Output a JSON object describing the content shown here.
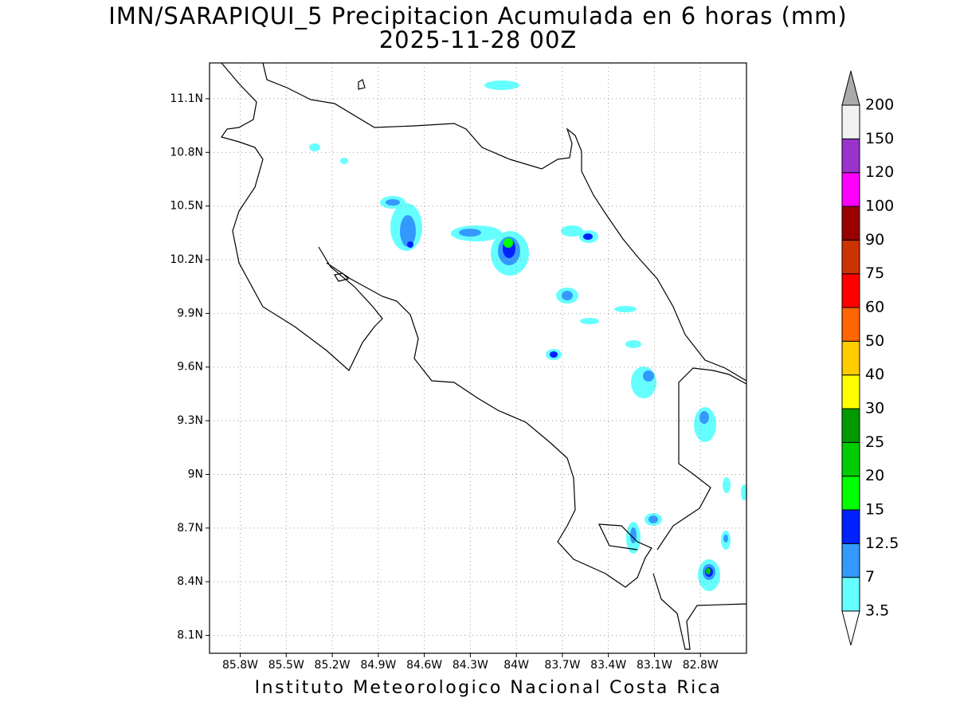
{
  "title": "IMN/SARAPIQUI_5 Precipitacion Acumulada en 6 horas (mm)",
  "subtitle": "2025-11-28 00Z",
  "footer": "Instituto Meteorologico Nacional Costa Rica",
  "map": {
    "xlim": [
      -86,
      -82.5
    ],
    "ylim": [
      8,
      11.3
    ],
    "xticks": [
      {
        "value": -85.8,
        "label": "85.8W"
      },
      {
        "value": -85.5,
        "label": "85.5W"
      },
      {
        "value": -85.2,
        "label": "85.2W"
      },
      {
        "value": -84.9,
        "label": "84.9W"
      },
      {
        "value": -84.6,
        "label": "84.6W"
      },
      {
        "value": -84.3,
        "label": "84.3W"
      },
      {
        "value": -84,
        "label": "84W"
      },
      {
        "value": -83.7,
        "label": "83.7W"
      },
      {
        "value": -83.4,
        "label": "83.4W"
      },
      {
        "value": -83.1,
        "label": "83.1W"
      },
      {
        "value": -82.8,
        "label": "82.8W"
      }
    ],
    "yticks": [
      {
        "value": 8.1,
        "label": "8.1N"
      },
      {
        "value": 8.4,
        "label": "8.4N"
      },
      {
        "value": 8.7,
        "label": "8.7N"
      },
      {
        "value": 9,
        "label": "9N"
      },
      {
        "value": 9.3,
        "label": "9.3N"
      },
      {
        "value": 9.6,
        "label": "9.6N"
      },
      {
        "value": 9.9,
        "label": "9.9N"
      },
      {
        "value": 10.2,
        "label": "10.2N"
      },
      {
        "value": 10.5,
        "label": "10.5N"
      },
      {
        "value": 10.8,
        "label": "10.8N"
      },
      {
        "value": 11.1,
        "label": "11.1N"
      }
    ],
    "grid": true
  },
  "colorbar": {
    "levels": [
      3.5,
      7,
      12.5,
      15,
      20,
      25,
      30,
      40,
      50,
      60,
      75,
      90,
      100,
      120,
      150,
      200
    ],
    "colors": [
      "#ffffff",
      "#66ffff",
      "#3399ff",
      "#0022ff",
      "#00ff00",
      "#00cc00",
      "#009900",
      "#ffff00",
      "#ffcc00",
      "#ff6600",
      "#ff0000",
      "#cc3300",
      "#990000",
      "#ff00ff",
      "#9933cc",
      "#f2f2f2",
      "#aaaaaa"
    ]
  }
}
